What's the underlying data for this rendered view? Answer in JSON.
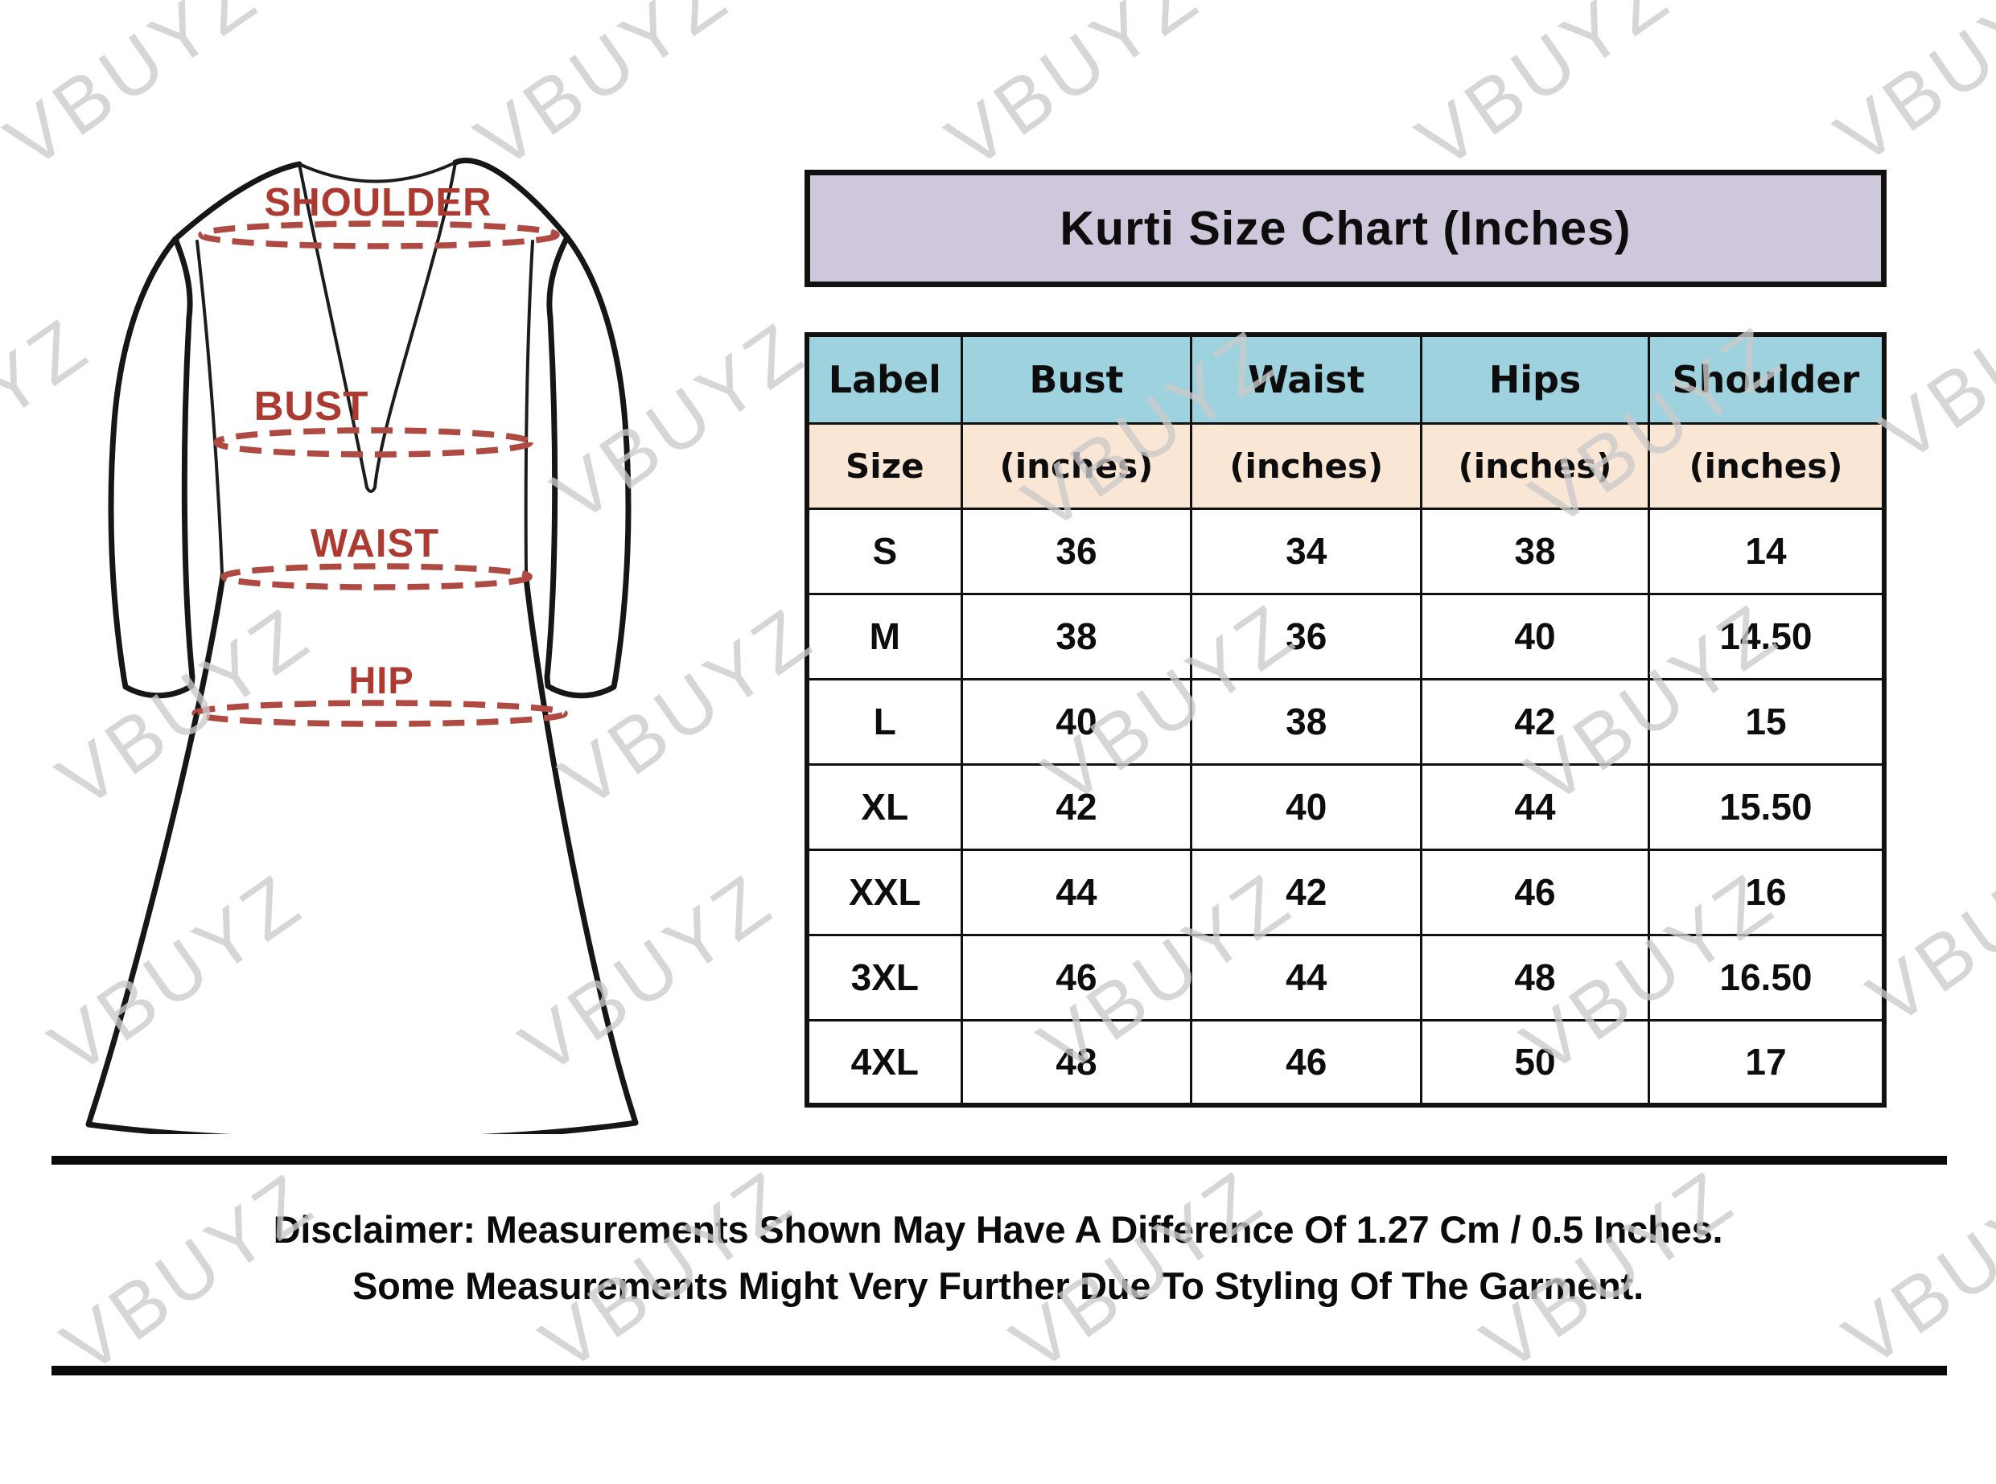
{
  "title": "Kurti Size Chart (Inches)",
  "kurti": {
    "labels": [
      "SHOULDER",
      "BUST",
      "WAIST",
      "HIP"
    ]
  },
  "table": {
    "columns": [
      "Label",
      "Bust",
      "Waist",
      "Hips",
      "Shoulder"
    ],
    "subheader": [
      "Size",
      "(inches)",
      "(inches)",
      "(inches)",
      "(inches)"
    ],
    "col_widths": [
      "14.35%",
      "21.34%",
      "21.34%",
      "21.12%",
      "21.85%"
    ],
    "rows": [
      [
        "S",
        "36",
        "34",
        "38",
        "14"
      ],
      [
        "M",
        "38",
        "36",
        "40",
        "14.50"
      ],
      [
        "L",
        "40",
        "38",
        "42",
        "15"
      ],
      [
        "XL",
        "42",
        "40",
        "44",
        "15.50"
      ],
      [
        "XXL",
        "44",
        "42",
        "46",
        "16"
      ],
      [
        "3XL",
        "46",
        "44",
        "48",
        "16.50"
      ],
      [
        "4XL",
        "48",
        "46",
        "50",
        "17"
      ]
    ]
  },
  "disclaimer": {
    "line1": "Disclaimer: Measurements Shown May Have A Difference Of 1.27 Cm / 0.5 Inches.",
    "line2": "Some Measurements Might Very Further Due To Styling Of The Garment."
  },
  "watermark": {
    "text": "VBUYZ",
    "rotation_deg": -35,
    "positions": [
      [
        165,
        85
      ],
      [
        750,
        85
      ],
      [
        1335,
        85
      ],
      [
        1920,
        85
      ],
      [
        2440,
        80
      ],
      [
        -45,
        520
      ],
      [
        845,
        525
      ],
      [
        1430,
        535
      ],
      [
        2060,
        530
      ],
      [
        2495,
        450
      ],
      [
        230,
        880
      ],
      [
        855,
        880
      ],
      [
        1455,
        875
      ],
      [
        2055,
        875
      ],
      [
        220,
        1211
      ],
      [
        805,
        1211
      ],
      [
        1450,
        1210
      ],
      [
        2050,
        1210
      ],
      [
        2480,
        1150
      ],
      [
        235,
        1583
      ],
      [
        830,
        1580
      ],
      [
        1415,
        1580
      ],
      [
        2000,
        1580
      ],
      [
        2450,
        1575
      ]
    ]
  },
  "colors": {
    "page_bg": "#ffffff",
    "title_bg": "#cfc8dd",
    "header_bg": "#9ed2de",
    "subheader_bg": "#fae6d4",
    "border": "#111111",
    "text": "#0d0d0d",
    "label_red": "#ad3a31",
    "dash_red": "#af4a42",
    "watermark": "#cbcbcb"
  }
}
